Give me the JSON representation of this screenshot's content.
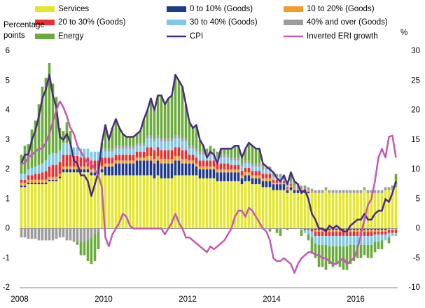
{
  "chart_data": {
    "type": "bar",
    "stacked": true,
    "ylabel": "Percentage points",
    "y2label": "%",
    "ylim": [
      -2,
      6
    ],
    "yticks": [
      -2,
      -1,
      0,
      1,
      2,
      3,
      4,
      5,
      6
    ],
    "y2lim": [
      -10,
      30
    ],
    "y2ticks": [
      -10,
      -5,
      0,
      5,
      10,
      15,
      20,
      25,
      30
    ],
    "categories": [
      "2008",
      null,
      null,
      null,
      null,
      null,
      null,
      null,
      null,
      null,
      null,
      null,
      null,
      null,
      null,
      null,
      null,
      null,
      null,
      null,
      null,
      null,
      null,
      null,
      "2010",
      null,
      null,
      null,
      null,
      null,
      null,
      null,
      null,
      null,
      null,
      null,
      null,
      null,
      null,
      null,
      null,
      null,
      null,
      null,
      null,
      null,
      null,
      null,
      "2012",
      null,
      null,
      null,
      null,
      null,
      null,
      null,
      null,
      null,
      null,
      null,
      null,
      null,
      null,
      null,
      null,
      null,
      null,
      null,
      null,
      null,
      null,
      null,
      "2014",
      null,
      null,
      null,
      null,
      null,
      null,
      null,
      null,
      null,
      null,
      null,
      null,
      null,
      null,
      null,
      null,
      null,
      null,
      null,
      null,
      null,
      null,
      null,
      "2016",
      null,
      null,
      null,
      null,
      null,
      null,
      null,
      null,
      null,
      null,
      null
    ],
    "series": [
      {
        "name": "Services",
        "color": "#e4e62a",
        "type": "bar",
        "values": [
          1.4,
          1.4,
          1.5,
          1.5,
          1.5,
          1.5,
          1.5,
          1.5,
          1.6,
          1.6,
          1.6,
          1.7,
          1.9,
          1.9,
          1.9,
          1.9,
          1.9,
          1.9,
          1.9,
          1.9,
          1.8,
          1.8,
          1.8,
          1.9,
          1.8,
          1.8,
          1.8,
          1.8,
          1.8,
          1.8,
          1.8,
          1.8,
          1.8,
          1.8,
          1.8,
          1.8,
          1.8,
          1.8,
          1.7,
          1.8,
          1.7,
          1.7,
          1.7,
          1.7,
          1.8,
          1.8,
          1.8,
          1.8,
          1.8,
          1.8,
          1.8,
          1.7,
          1.7,
          1.7,
          1.7,
          1.7,
          1.6,
          1.6,
          1.6,
          1.6,
          1.6,
          1.6,
          1.6,
          1.5,
          1.6,
          1.6,
          1.5,
          1.5,
          1.5,
          1.4,
          1.4,
          1.4,
          1.3,
          1.3,
          1.3,
          1.3,
          1.2,
          1.3,
          1.2,
          1.2,
          1.2,
          1.2,
          1.2,
          1.2,
          1.2,
          1.2,
          1.2,
          1.3,
          1.2,
          1.2,
          1.2,
          1.2,
          1.2,
          1.2,
          1.2,
          1.2,
          1.2,
          1.2,
          1.3,
          1.2,
          1.2,
          1.2,
          1.2,
          1.2,
          1.3,
          1.3,
          1.3,
          1.4
        ]
      },
      {
        "name": "0 to 10% (Goods)",
        "color": "#1f3a8a",
        "type": "bar",
        "values": [
          0.05,
          0.05,
          0.05,
          0.05,
          0.05,
          0.05,
          0.05,
          0.05,
          0.05,
          0.05,
          0.05,
          0.05,
          0.1,
          0.1,
          0.1,
          0.1,
          0.1,
          0.1,
          0.1,
          0.1,
          0.1,
          0.1,
          0.1,
          0.1,
          0.3,
          0.3,
          0.3,
          0.4,
          0.4,
          0.4,
          0.4,
          0.4,
          0.4,
          0.5,
          0.5,
          0.5,
          0.5,
          0.5,
          0.5,
          0.5,
          0.5,
          0.5,
          0.5,
          0.5,
          0.5,
          0.5,
          0.4,
          0.4,
          0.4,
          0.4,
          0.3,
          0.3,
          0.3,
          0.3,
          0.3,
          0.3,
          0.3,
          0.3,
          0.3,
          0.3,
          0.3,
          0.3,
          0.3,
          0.2,
          0.2,
          0.2,
          0.2,
          0.2,
          0.2,
          0.2,
          0.2,
          0.2,
          0.2,
          0.2,
          0.2,
          0.2,
          0.1,
          0.1,
          0.1,
          0.1,
          0.1,
          0.05,
          0.05,
          0,
          -0.05,
          -0.05,
          -0.05,
          -0.05,
          -0.05,
          -0.05,
          -0.05,
          -0.05,
          -0.05,
          -0.05,
          -0.05,
          -0.05,
          -0.05,
          -0.05,
          -0.05,
          -0.05,
          -0.05,
          -0.05,
          -0.05,
          -0.05,
          -0.05,
          0,
          0,
          0
        ]
      },
      {
        "name": "10 to 20% (Goods)",
        "color": "#f39a2c",
        "type": "bar",
        "values": [
          0.1,
          0.1,
          0.1,
          0.1,
          0.1,
          0.1,
          0.1,
          0.1,
          0.1,
          0.1,
          0.1,
          0.1,
          0.1,
          0.1,
          0.1,
          0.1,
          0.1,
          0.1,
          0.1,
          0.1,
          0.1,
          0.1,
          0.1,
          0.1,
          0.1,
          0.1,
          0.1,
          0.1,
          0.1,
          0.1,
          0.1,
          0.1,
          0.1,
          0.1,
          0.1,
          0.1,
          0.15,
          0.15,
          0.15,
          0.15,
          0.15,
          0.15,
          0.15,
          0.15,
          0.15,
          0.15,
          0.15,
          0.15,
          0.1,
          0.1,
          0.1,
          0.1,
          0.1,
          0.1,
          0.1,
          0.1,
          0.1,
          0.1,
          0.1,
          0.1,
          0.1,
          0.1,
          0.1,
          0.1,
          0.1,
          0.1,
          0.1,
          0.1,
          0.1,
          0.1,
          0.1,
          0.1,
          0.05,
          0.05,
          0.05,
          0.05,
          0.05,
          0.05,
          0.05,
          0.05,
          0.05,
          0.05,
          0.05,
          0.05,
          -0.05,
          -0.05,
          -0.05,
          -0.05,
          -0.05,
          -0.05,
          -0.05,
          -0.05,
          -0.05,
          -0.05,
          -0.05,
          -0.05,
          -0.05,
          -0.05,
          -0.05,
          -0.05,
          -0.05,
          -0.05,
          -0.05,
          -0.05,
          -0.05,
          -0.05,
          -0.05,
          -0.05
        ]
      },
      {
        "name": "20 to 30% (Goods)",
        "color": "#e8312f",
        "type": "bar",
        "values": [
          0.1,
          0.1,
          0.15,
          0.15,
          0.2,
          0.2,
          0.25,
          0.3,
          0.35,
          0.4,
          0.4,
          0.4,
          0.4,
          0.4,
          0.4,
          0.35,
          0.35,
          0.3,
          0.3,
          0.3,
          0.3,
          0.3,
          0.3,
          0.3,
          0.2,
          0.2,
          0.2,
          0.2,
          0.2,
          0.2,
          0.2,
          0.2,
          0.2,
          0.2,
          0.2,
          0.2,
          0.3,
          0.3,
          0.3,
          0.3,
          0.3,
          0.3,
          0.3,
          0.3,
          0.3,
          0.3,
          0.3,
          0.3,
          0.2,
          0.2,
          0.2,
          0.2,
          0.2,
          0.2,
          0.2,
          0.2,
          0.2,
          0.2,
          0.2,
          0.2,
          0.15,
          0.15,
          0.15,
          0.15,
          0.15,
          0.15,
          0.15,
          0.15,
          0.15,
          0.15,
          0.15,
          0.15,
          0.1,
          0.1,
          0.1,
          0.05,
          0.05,
          0.05,
          0,
          0,
          0,
          -0.05,
          -0.05,
          -0.1,
          -0.15,
          -0.15,
          -0.15,
          -0.15,
          -0.15,
          -0.15,
          -0.15,
          -0.15,
          -0.15,
          -0.15,
          -0.15,
          -0.15,
          -0.15,
          -0.15,
          -0.15,
          -0.15,
          -0.15,
          -0.1,
          -0.1,
          -0.1,
          -0.1,
          -0.1,
          -0.1,
          -0.1
        ]
      },
      {
        "name": "30 to 40% (Goods)",
        "color": "#7ec8e6",
        "type": "bar",
        "values": [
          0.2,
          0.2,
          0.2,
          0.25,
          0.25,
          0.3,
          0.3,
          0.35,
          0.4,
          0.4,
          0.4,
          0.4,
          0.4,
          0.4,
          0.35,
          0.3,
          0.3,
          0.3,
          0.3,
          0.3,
          0.3,
          0.3,
          0.3,
          0.3,
          0.2,
          0.2,
          0.2,
          0.2,
          0.2,
          0.2,
          0.2,
          0.2,
          0.2,
          0.2,
          0.2,
          0.2,
          0.3,
          0.3,
          0.3,
          0.3,
          0.3,
          0.3,
          0.3,
          0.3,
          0.3,
          0.3,
          0.3,
          0.3,
          0.2,
          0.2,
          0.2,
          0.2,
          0.2,
          0.2,
          0.2,
          0.2,
          0.2,
          0.2,
          0.2,
          0.2,
          0.15,
          0.15,
          0.15,
          0.15,
          0.15,
          0.15,
          0.15,
          0.15,
          0.15,
          0.15,
          0.15,
          0.15,
          0.1,
          0.1,
          0.1,
          0.05,
          0.05,
          0,
          0,
          0,
          -0.05,
          -0.1,
          -0.15,
          -0.2,
          -0.25,
          -0.3,
          -0.3,
          -0.3,
          -0.35,
          -0.35,
          -0.35,
          -0.35,
          -0.35,
          -0.35,
          -0.3,
          -0.3,
          -0.3,
          -0.3,
          -0.3,
          -0.3,
          -0.3,
          -0.25,
          -0.25,
          -0.2,
          -0.2,
          -0.15,
          -0.1,
          -0.1
        ]
      },
      {
        "name": "40% and over (Goods)",
        "color": "#9c9c9c",
        "type": "bar",
        "values": [
          -0.3,
          -0.3,
          -0.35,
          -0.35,
          -0.35,
          -0.4,
          -0.4,
          -0.4,
          -0.4,
          -0.4,
          -0.35,
          -0.3,
          -0.3,
          -0.4,
          -0.4,
          -0.45,
          -0.45,
          -0.45,
          -0.45,
          -0.4,
          -0.3,
          -0.2,
          -0.1,
          0,
          0.1,
          0.1,
          0.1,
          0.1,
          0.1,
          0.1,
          0.1,
          0.1,
          0.1,
          0.1,
          0.1,
          0.1,
          0.1,
          0.1,
          0.1,
          0.1,
          0.1,
          0.1,
          0.1,
          0.1,
          0.1,
          0.1,
          0.1,
          0.1,
          0.1,
          0.1,
          0.1,
          0.1,
          0.1,
          0.1,
          0.1,
          0.1,
          0.1,
          0.1,
          0.1,
          0.1,
          0.1,
          0.1,
          0.1,
          0.1,
          0.1,
          0.1,
          0.1,
          0.1,
          0.1,
          0.1,
          0.1,
          0.1,
          0.1,
          0.1,
          0.1,
          0.1,
          0.1,
          0.1,
          0.1,
          0.1,
          0.1,
          0.1,
          0.1,
          0.1,
          0.1,
          0.1,
          0.1,
          0.1,
          0.1,
          0.1,
          0.1,
          0.1,
          0.1,
          0.1,
          0.1,
          0.1,
          0.1,
          0.1,
          0.1,
          0.1,
          0.1,
          0.1,
          0.1,
          0.1,
          0.1,
          0.1,
          0.1,
          0.1
        ]
      },
      {
        "name": "Energy",
        "color": "#6aab3b",
        "type": "bar",
        "values": [
          0.65,
          0.95,
          0.85,
          1.3,
          1.55,
          2.05,
          2.6,
          2.8,
          3.1,
          2.35,
          1.9,
          0.75,
          0.4,
          0.7,
          0.45,
          0,
          -0.1,
          -0.45,
          -0.45,
          -0.7,
          -0.9,
          -0.9,
          -0.6,
          0.2,
          0.8,
          0.3,
          0.7,
          0.9,
          0.6,
          0.4,
          0.3,
          0.3,
          0.3,
          0.3,
          0.4,
          0.8,
          0.85,
          1.25,
          0.95,
          1.35,
          1.45,
          1.15,
          1.35,
          1.45,
          2.05,
          1.85,
          1.75,
          1.15,
          0.8,
          0.6,
          0.8,
          0.4,
          0.2,
          0.1,
          0.2,
          0.1,
          0.1,
          0.2,
          0.2,
          0.2,
          0.3,
          0.4,
          0.4,
          0.2,
          0.4,
          0.6,
          0.6,
          0.5,
          0.5,
          0.1,
          0,
          -0.1,
          0.05,
          -0.15,
          -0.25,
          0.05,
          -0.05,
          0.3,
          0.15,
          0.05,
          -0.2,
          0.05,
          -0.2,
          -0.55,
          -0.5,
          -0.75,
          -0.75,
          -0.85,
          -0.6,
          -0.7,
          -0.6,
          -0.7,
          -0.8,
          -0.8,
          -0.65,
          -0.55,
          -0.45,
          -0.45,
          -0.35,
          -0.45,
          -0.45,
          -0.35,
          -0.25,
          -0.3,
          0,
          -0.2,
          0.05,
          0.35
        ]
      },
      {
        "name": "CPI",
        "color": "#4a2c7e",
        "type": "line",
        "values": [
          2.2,
          2.5,
          2.5,
          3.0,
          3.3,
          3.8,
          4.4,
          4.7,
          5.2,
          4.5,
          4.1,
          3.1,
          3.0,
          3.2,
          2.9,
          2.3,
          2.2,
          1.8,
          1.8,
          1.6,
          1.1,
          1.5,
          1.9,
          2.9,
          3.5,
          3.0,
          3.4,
          3.7,
          3.4,
          3.2,
          3.1,
          3.1,
          3.1,
          3.2,
          3.3,
          3.7,
          4.0,
          4.4,
          4.0,
          4.5,
          4.5,
          4.2,
          4.4,
          4.5,
          5.2,
          5.0,
          4.8,
          4.2,
          3.6,
          3.4,
          3.5,
          3.0,
          2.8,
          2.4,
          2.6,
          2.5,
          2.2,
          2.7,
          2.7,
          2.7,
          2.7,
          2.8,
          2.8,
          2.4,
          2.7,
          2.9,
          2.8,
          2.7,
          2.7,
          2.2,
          2.1,
          2.0,
          1.9,
          1.7,
          1.6,
          1.8,
          1.5,
          1.9,
          1.6,
          1.5,
          1.2,
          1.3,
          1.0,
          0.5,
          0.3,
          0.0,
          0.0,
          -0.1,
          0.1,
          0.0,
          0.1,
          0.0,
          -0.1,
          -0.1,
          0.1,
          0.2,
          0.3,
          0.3,
          0.5,
          0.3,
          0.3,
          0.5,
          0.6,
          0.6,
          1.0,
          0.9,
          1.2,
          1.6
        ]
      },
      {
        "name": "Inverted ERI growth",
        "color": "#c05ab4",
        "type": "line",
        "axis": "y2",
        "values": [
          11,
          11,
          12,
          12.5,
          13,
          13.5,
          13.5,
          14.5,
          16,
          18,
          20,
          21.5,
          20.5,
          19,
          17,
          16,
          14,
          13,
          12,
          11,
          11,
          10,
          9,
          7,
          -1.5,
          -3,
          -1,
          0,
          1,
          2.5,
          2,
          0.5,
          0,
          0,
          0,
          0,
          0,
          0,
          0,
          0,
          0,
          -1,
          0,
          1,
          2.5,
          1,
          0,
          -1.5,
          -1.5,
          -2,
          -2.5,
          -3,
          -3.5,
          -4,
          -3,
          -3.5,
          -3,
          -2.5,
          -2,
          -1,
          0,
          2,
          3,
          3,
          2,
          3.5,
          3,
          2,
          1,
          0,
          -0.5,
          -2,
          -5,
          -5.5,
          -5.5,
          -5,
          -5.5,
          -6,
          -7.5,
          -6,
          -5,
          -4.5,
          -4,
          -4,
          -4.5,
          -4.5,
          -5,
          -5,
          -5.5,
          -6,
          -6,
          -5.5,
          -5,
          -6,
          -5.5,
          -5,
          -3.5,
          -1,
          1.5,
          4,
          5,
          8,
          12,
          13.5,
          12,
          15.5,
          15.7,
          12
        ]
      }
    ]
  }
}
